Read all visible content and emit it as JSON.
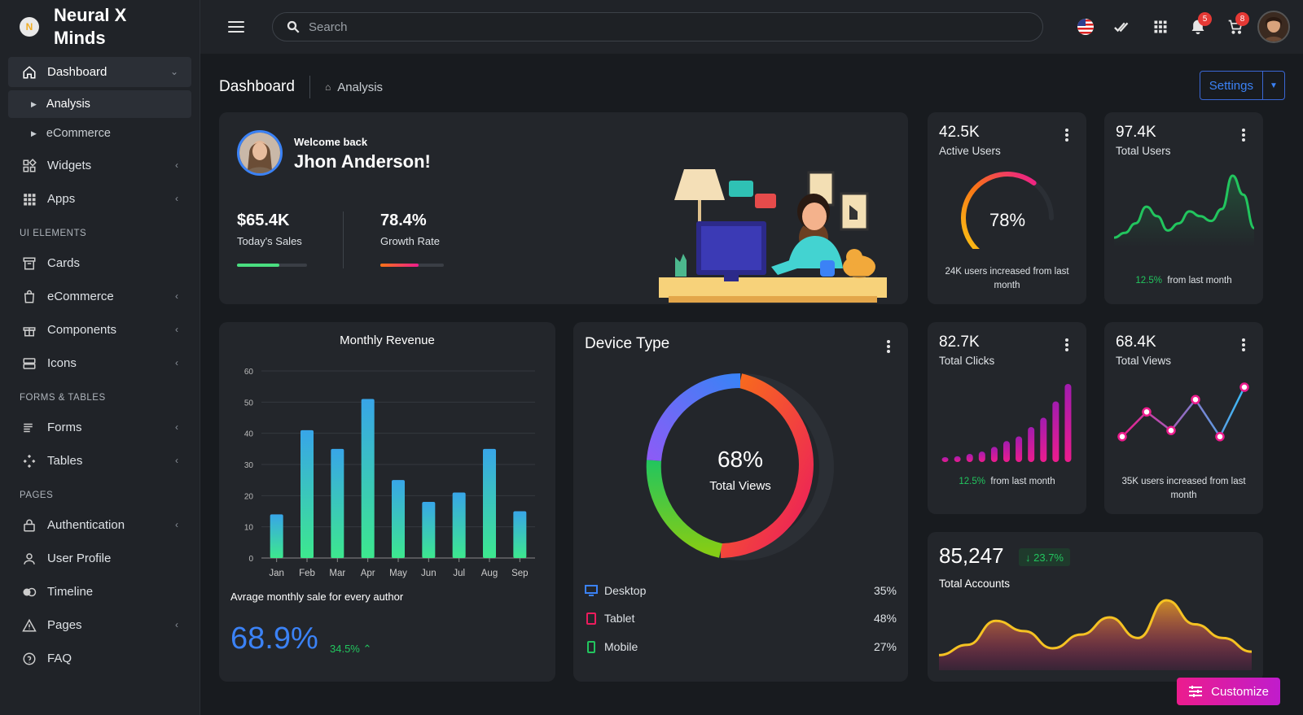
{
  "brand": {
    "name": "Neural X Minds"
  },
  "sidebar": {
    "dashboard": "Dashboard",
    "sub_items": [
      {
        "label": "Analysis"
      },
      {
        "label": "eCommerce"
      }
    ],
    "items_top": [
      {
        "label": "Widgets"
      },
      {
        "label": "Apps"
      }
    ],
    "section_ui": "UI ELEMENTS",
    "items_ui": [
      {
        "label": "Cards"
      },
      {
        "label": "eCommerce"
      },
      {
        "label": "Components"
      },
      {
        "label": "Icons"
      }
    ],
    "section_forms": "FORMS & TABLES",
    "items_forms": [
      {
        "label": "Forms"
      },
      {
        "label": "Tables"
      }
    ],
    "section_pages": "PAGES",
    "items_pages": [
      {
        "label": "Authentication"
      },
      {
        "label": "User Profile"
      },
      {
        "label": "Timeline"
      },
      {
        "label": "Pages"
      },
      {
        "label": "FAQ"
      }
    ]
  },
  "topbar": {
    "search_placeholder": "Search",
    "notifications_count": "5",
    "cart_count": "8"
  },
  "page": {
    "title": "Dashboard",
    "crumb": "Analysis",
    "settings_label": "Settings"
  },
  "welcome": {
    "greeting": "Welcome back",
    "name": "Jhon Anderson!",
    "sales_value": "$65.4K",
    "sales_label": "Today's Sales",
    "sales_progress": 0.6,
    "growth_value": "78.4%",
    "growth_label": "Growth Rate",
    "growth_progress": 0.6
  },
  "active_users": {
    "value": "42.5K",
    "label": "Active Users",
    "gauge": "78%",
    "gauge_percent": 78,
    "note": "24K users increased from last month"
  },
  "total_users": {
    "value": "97.4K",
    "label": "Total Users",
    "change": "12.5%",
    "note": "from last month"
  },
  "total_clicks": {
    "value": "82.7K",
    "label": "Total Clicks",
    "change": "12.5%",
    "note": "from last month"
  },
  "total_views": {
    "value": "68.4K",
    "label": "Total Views",
    "note": "35K users increased from last month"
  },
  "revenue": {
    "title": "Monthly Revenue",
    "footer": "Avrage monthly sale for every author",
    "big_value": "68.9%",
    "change": "34.5%"
  },
  "chart_data": [
    {
      "type": "bar",
      "title": "Monthly Revenue",
      "categories": [
        "Jan",
        "Feb",
        "Mar",
        "Apr",
        "May",
        "Jun",
        "Jul",
        "Aug",
        "Sep"
      ],
      "values": [
        14,
        41,
        35,
        51,
        25,
        18,
        21,
        35,
        15
      ],
      "yticks": [
        0,
        10,
        20,
        30,
        40,
        50,
        60
      ],
      "ylim": [
        0,
        60
      ],
      "grid": true
    },
    {
      "type": "pie",
      "title": "Device Type",
      "center_value": "68%",
      "center_label": "Total Views",
      "legend": [
        {
          "label": "Desktop",
          "value": "35%"
        },
        {
          "label": "Tablet",
          "value": "48%"
        },
        {
          "label": "Mobile",
          "value": "27%"
        }
      ]
    },
    {
      "type": "area",
      "card": "Total Users",
      "values": [
        2,
        4,
        8,
        15,
        11,
        5,
        8,
        13,
        11,
        9,
        14,
        28,
        20,
        6
      ]
    },
    {
      "type": "bar",
      "card": "Total Clicks",
      "values": [
        1,
        5,
        7,
        9,
        13,
        18,
        22,
        30,
        38,
        52,
        67
      ]
    },
    {
      "type": "line",
      "card": "Total Views",
      "values": [
        2,
        6,
        3,
        8,
        2,
        10
      ]
    },
    {
      "type": "area",
      "card": "Total Accounts",
      "values": [
        3,
        6,
        13,
        10,
        5,
        9,
        14,
        8,
        19,
        12,
        8,
        4
      ]
    }
  ],
  "accounts": {
    "value": "85,247",
    "change": "23.7%",
    "label": "Total Accounts"
  },
  "customize": {
    "label": "Customize"
  },
  "colors": {
    "accent": "#3b82f6",
    "green": "#22c55e",
    "pink": "#ec1c8d"
  }
}
